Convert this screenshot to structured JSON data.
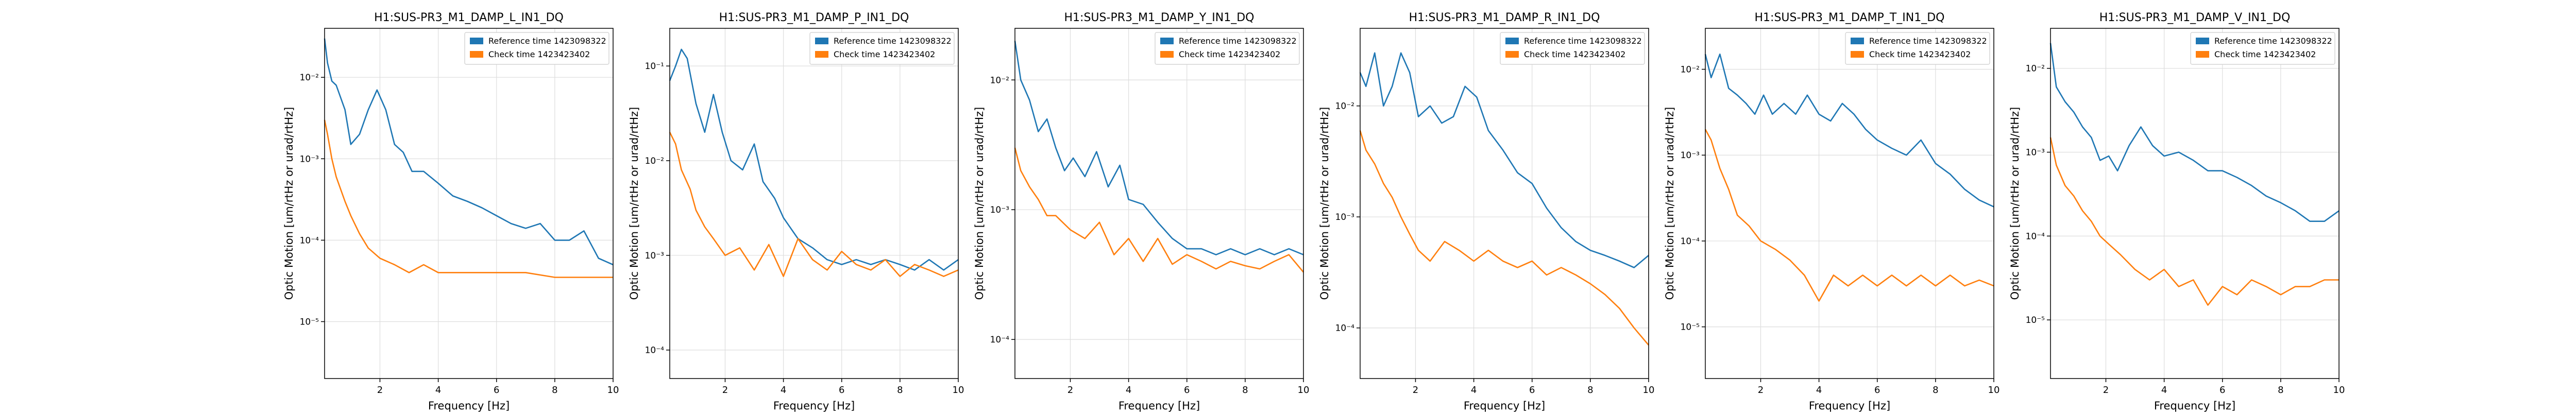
{
  "figure": {
    "xlabel": "Frequency [Hz]",
    "ylabel": "Optic Motion [um/rtHz or urad/rtHz]",
    "legend": [
      "Reference time 1423098322",
      "Check time 1423423402"
    ],
    "colors": {
      "reference": "#1f77b4",
      "check": "#ff7f0e",
      "grid": "#dddddd"
    }
  },
  "chart_data": [
    {
      "type": "line",
      "title": "H1:SUS-PR3_M1_DAMP_L_IN1_DQ",
      "xlabel": "Frequency [Hz]",
      "ylabel": "Optic Motion [um/rtHz or urad/rtHz]",
      "xlim": [
        0.1,
        10
      ],
      "ylim": [
        2e-06,
        0.04
      ],
      "log_y": true,
      "grid": true,
      "legend_position": "top-right",
      "xticks": [
        2,
        4,
        6,
        8,
        10
      ],
      "xtick_labels": [
        "2",
        "4",
        "6",
        "8",
        "10"
      ],
      "yticks": [
        1e-05,
        0.0001,
        0.001,
        0.01
      ],
      "ytick_labels": [
        "10⁻⁵",
        "10⁻⁴",
        "10⁻³",
        "10⁻²"
      ],
      "series": [
        {
          "name": "Reference time 1423098322",
          "x": [
            0.1,
            0.2,
            0.35,
            0.5,
            0.8,
            1.0,
            1.3,
            1.6,
            1.9,
            2.2,
            2.5,
            2.8,
            3.1,
            3.5,
            4.0,
            4.5,
            5.0,
            5.5,
            6.0,
            6.5,
            7.0,
            7.5,
            8.0,
            8.5,
            9.0,
            9.5,
            10.0
          ],
          "y": [
            0.03,
            0.015,
            0.009,
            0.008,
            0.004,
            0.0015,
            0.002,
            0.004,
            0.007,
            0.004,
            0.0015,
            0.0012,
            0.0007,
            0.0007,
            0.0005,
            0.00035,
            0.0003,
            0.00025,
            0.0002,
            0.00016,
            0.00014,
            0.00016,
            0.0001,
            0.0001,
            0.00013,
            6e-05,
            5e-05
          ]
        },
        {
          "name": "Check time 1423423402",
          "x": [
            0.1,
            0.2,
            0.35,
            0.5,
            0.8,
            1.0,
            1.3,
            1.6,
            2.0,
            2.5,
            3.0,
            3.5,
            4.0,
            5.0,
            6.0,
            7.0,
            8.0,
            9.0,
            10.0
          ],
          "y": [
            0.003,
            0.002,
            0.001,
            0.0006,
            0.0003,
            0.0002,
            0.00012,
            8e-05,
            6e-05,
            5e-05,
            4e-05,
            5e-05,
            4e-05,
            4e-05,
            4e-05,
            4e-05,
            3.5e-05,
            3.5e-05,
            3.5e-05
          ]
        }
      ]
    },
    {
      "type": "line",
      "title": "H1:SUS-PR3_M1_DAMP_P_IN1_DQ",
      "xlabel": "Frequency [Hz]",
      "ylabel": "Optic Motion [um/rtHz or urad/rtHz]",
      "xlim": [
        0.1,
        10
      ],
      "ylim": [
        5e-05,
        0.25
      ],
      "log_y": true,
      "grid": true,
      "legend_position": "top-right",
      "xticks": [
        2,
        4,
        6,
        8,
        10
      ],
      "xtick_labels": [
        "2",
        "4",
        "6",
        "8",
        "10"
      ],
      "yticks": [
        0.0001,
        0.001,
        0.01,
        0.1
      ],
      "ytick_labels": [
        "10⁻⁴",
        "10⁻³",
        "10⁻²",
        "10⁻¹"
      ],
      "series": [
        {
          "name": "Reference time 1423098322",
          "x": [
            0.1,
            0.3,
            0.5,
            0.7,
            1.0,
            1.3,
            1.6,
            1.9,
            2.2,
            2.6,
            3.0,
            3.3,
            3.7,
            4.0,
            4.5,
            5.0,
            5.5,
            6.0,
            6.5,
            7.0,
            7.5,
            8.0,
            8.5,
            9.0,
            9.5,
            10.0
          ],
          "y": [
            0.07,
            0.1,
            0.15,
            0.12,
            0.04,
            0.02,
            0.05,
            0.02,
            0.01,
            0.008,
            0.015,
            0.006,
            0.004,
            0.0025,
            0.0015,
            0.0012,
            0.0009,
            0.0008,
            0.0009,
            0.0008,
            0.0009,
            0.0008,
            0.0007,
            0.0009,
            0.0007,
            0.0009
          ]
        },
        {
          "name": "Check time 1423423402",
          "x": [
            0.1,
            0.3,
            0.5,
            0.8,
            1.0,
            1.3,
            1.6,
            2.0,
            2.5,
            3.0,
            3.5,
            4.0,
            4.5,
            5.0,
            5.5,
            6.0,
            6.5,
            7.0,
            7.5,
            8.0,
            8.5,
            9.0,
            9.5,
            10.0
          ],
          "y": [
            0.02,
            0.015,
            0.008,
            0.005,
            0.003,
            0.002,
            0.0015,
            0.001,
            0.0012,
            0.0007,
            0.0013,
            0.0006,
            0.0015,
            0.0009,
            0.0007,
            0.0011,
            0.0008,
            0.0007,
            0.0009,
            0.0006,
            0.0008,
            0.0007,
            0.0006,
            0.0007
          ]
        }
      ]
    },
    {
      "type": "line",
      "title": "H1:SUS-PR3_M1_DAMP_Y_IN1_DQ",
      "xlabel": "Frequency [Hz]",
      "ylabel": "Optic Motion [um/rtHz or urad/rtHz]",
      "xlim": [
        0.1,
        10
      ],
      "ylim": [
        5e-05,
        0.025
      ],
      "log_y": true,
      "grid": true,
      "legend_position": "top-right",
      "xticks": [
        2,
        4,
        6,
        8,
        10
      ],
      "xtick_labels": [
        "2",
        "4",
        "6",
        "8",
        "10"
      ],
      "yticks": [
        0.0001,
        0.001,
        0.01
      ],
      "ytick_labels": [
        "10⁻⁴",
        "10⁻³",
        "10⁻²"
      ],
      "series": [
        {
          "name": "Reference time 1423098322",
          "x": [
            0.1,
            0.3,
            0.6,
            0.9,
            1.2,
            1.5,
            1.8,
            2.1,
            2.5,
            2.9,
            3.3,
            3.7,
            4.0,
            4.5,
            5.0,
            5.5,
            6.0,
            6.5,
            7.0,
            7.5,
            8.0,
            8.5,
            9.0,
            9.5,
            10.0
          ],
          "y": [
            0.02,
            0.01,
            0.007,
            0.004,
            0.005,
            0.003,
            0.002,
            0.0025,
            0.0018,
            0.0028,
            0.0015,
            0.0022,
            0.0012,
            0.0011,
            0.0008,
            0.0006,
            0.0005,
            0.0005,
            0.00045,
            0.0005,
            0.00045,
            0.0005,
            0.00045,
            0.0005,
            0.00045
          ]
        },
        {
          "name": "Check time 1423423402",
          "x": [
            0.1,
            0.3,
            0.6,
            0.9,
            1.2,
            1.5,
            2.0,
            2.5,
            3.0,
            3.5,
            4.0,
            4.5,
            5.0,
            5.5,
            6.0,
            6.5,
            7.0,
            7.5,
            8.0,
            8.5,
            9.0,
            9.5,
            10.0
          ],
          "y": [
            0.003,
            0.002,
            0.0015,
            0.0012,
            0.0009,
            0.0009,
            0.0007,
            0.0006,
            0.0008,
            0.00045,
            0.0006,
            0.0004,
            0.0006,
            0.00038,
            0.00045,
            0.0004,
            0.00035,
            0.0004,
            0.00037,
            0.00035,
            0.0004,
            0.00045,
            0.00033
          ]
        }
      ]
    },
    {
      "type": "line",
      "title": "H1:SUS-PR3_M1_DAMP_R_IN1_DQ",
      "xlabel": "Frequency [Hz]",
      "ylabel": "Optic Motion [um/rtHz or urad/rtHz]",
      "xlim": [
        0.1,
        10
      ],
      "ylim": [
        3.5e-05,
        0.05
      ],
      "log_y": true,
      "grid": true,
      "legend_position": "top-right",
      "xticks": [
        2,
        4,
        6,
        8,
        10
      ],
      "xtick_labels": [
        "2",
        "4",
        "6",
        "8",
        "10"
      ],
      "yticks": [
        0.0001,
        0.001,
        0.01
      ],
      "ytick_labels": [
        "10⁻⁴",
        "10⁻³",
        "10⁻²"
      ],
      "series": [
        {
          "name": "Reference time 1423098322",
          "x": [
            0.1,
            0.3,
            0.6,
            0.9,
            1.2,
            1.5,
            1.8,
            2.1,
            2.5,
            2.9,
            3.3,
            3.7,
            4.1,
            4.5,
            5.0,
            5.5,
            6.0,
            6.5,
            7.0,
            7.5,
            8.0,
            8.5,
            9.0,
            9.5,
            10.0
          ],
          "y": [
            0.02,
            0.015,
            0.03,
            0.01,
            0.015,
            0.03,
            0.02,
            0.008,
            0.01,
            0.007,
            0.008,
            0.015,
            0.012,
            0.006,
            0.004,
            0.0025,
            0.002,
            0.0012,
            0.0008,
            0.0006,
            0.0005,
            0.00045,
            0.0004,
            0.00035,
            0.00045
          ]
        },
        {
          "name": "Check time 1423423402",
          "x": [
            0.1,
            0.3,
            0.6,
            0.9,
            1.2,
            1.5,
            1.8,
            2.1,
            2.5,
            3.0,
            3.5,
            4.0,
            4.5,
            5.0,
            5.5,
            6.0,
            6.5,
            7.0,
            7.5,
            8.0,
            8.5,
            9.0,
            9.5,
            10.0
          ],
          "y": [
            0.006,
            0.004,
            0.003,
            0.002,
            0.0015,
            0.001,
            0.0007,
            0.0005,
            0.0004,
            0.0006,
            0.0005,
            0.0004,
            0.0005,
            0.0004,
            0.00035,
            0.0004,
            0.0003,
            0.00035,
            0.0003,
            0.00025,
            0.0002,
            0.00015,
            0.0001,
            7e-05
          ]
        }
      ]
    },
    {
      "type": "line",
      "title": "H1:SUS-PR3_M1_DAMP_T_IN1_DQ",
      "xlabel": "Frequency [Hz]",
      "ylabel": "Optic Motion [um/rtHz or urad/rtHz]",
      "xlim": [
        0.1,
        10
      ],
      "ylim": [
        2.5e-06,
        0.03
      ],
      "log_y": true,
      "grid": true,
      "legend_position": "top-right",
      "xticks": [
        2,
        4,
        6,
        8,
        10
      ],
      "xtick_labels": [
        "2",
        "4",
        "6",
        "8",
        "10"
      ],
      "yticks": [
        1e-05,
        0.0001,
        0.001,
        0.01
      ],
      "ytick_labels": [
        "10⁻⁵",
        "10⁻⁴",
        "10⁻³",
        "10⁻²"
      ],
      "series": [
        {
          "name": "Reference time 1423098322",
          "x": [
            0.1,
            0.3,
            0.6,
            0.9,
            1.2,
            1.5,
            1.8,
            2.1,
            2.4,
            2.8,
            3.2,
            3.6,
            4.0,
            4.4,
            4.8,
            5.2,
            5.6,
            6.0,
            6.5,
            7.0,
            7.5,
            8.0,
            8.5,
            9.0,
            9.5,
            10.0
          ],
          "y": [
            0.015,
            0.008,
            0.015,
            0.006,
            0.005,
            0.004,
            0.003,
            0.005,
            0.003,
            0.004,
            0.003,
            0.005,
            0.003,
            0.0025,
            0.004,
            0.003,
            0.002,
            0.0015,
            0.0012,
            0.001,
            0.0015,
            0.0008,
            0.0006,
            0.0004,
            0.0003,
            0.00025
          ]
        },
        {
          "name": "Check time 1423423402",
          "x": [
            0.1,
            0.3,
            0.6,
            0.9,
            1.2,
            1.6,
            2.0,
            2.5,
            3.0,
            3.5,
            4.0,
            4.5,
            5.0,
            5.5,
            6.0,
            6.5,
            7.0,
            7.5,
            8.0,
            8.5,
            9.0,
            9.5,
            10.0
          ],
          "y": [
            0.002,
            0.0015,
            0.0007,
            0.0004,
            0.0002,
            0.00015,
            0.0001,
            8e-05,
            6e-05,
            4e-05,
            2e-05,
            4e-05,
            3e-05,
            4e-05,
            3e-05,
            4e-05,
            3e-05,
            4e-05,
            3e-05,
            4e-05,
            3e-05,
            3.5e-05,
            3e-05
          ]
        }
      ]
    },
    {
      "type": "line",
      "title": "H1:SUS-PR3_M1_DAMP_V_IN1_DQ",
      "xlabel": "Frequency [Hz]",
      "ylabel": "Optic Motion [um/rtHz or urad/rtHz]",
      "xlim": [
        0.1,
        10
      ],
      "ylim": [
        2e-06,
        0.03
      ],
      "log_y": true,
      "grid": true,
      "legend_position": "top-right",
      "xticks": [
        2,
        4,
        6,
        8,
        10
      ],
      "xtick_labels": [
        "2",
        "4",
        "6",
        "8",
        "10"
      ],
      "yticks": [
        1e-05,
        0.0001,
        0.001,
        0.01
      ],
      "ytick_labels": [
        "10⁻⁵",
        "10⁻⁴",
        "10⁻³",
        "10⁻²"
      ],
      "series": [
        {
          "name": "Reference time 1423098322",
          "x": [
            0.1,
            0.3,
            0.6,
            0.9,
            1.2,
            1.5,
            1.8,
            2.1,
            2.4,
            2.8,
            3.2,
            3.6,
            4.0,
            4.5,
            5.0,
            5.5,
            6.0,
            6.5,
            7.0,
            7.5,
            8.0,
            8.5,
            9.0,
            9.5,
            10.0
          ],
          "y": [
            0.02,
            0.006,
            0.004,
            0.003,
            0.002,
            0.0015,
            0.0008,
            0.0009,
            0.0006,
            0.0012,
            0.002,
            0.0012,
            0.0009,
            0.001,
            0.0008,
            0.0006,
            0.0006,
            0.0005,
            0.0004,
            0.0003,
            0.00025,
            0.0002,
            0.00015,
            0.00015,
            0.0002
          ]
        },
        {
          "name": "Check time 1423423402",
          "x": [
            0.1,
            0.3,
            0.6,
            0.9,
            1.2,
            1.5,
            1.8,
            2.1,
            2.5,
            3.0,
            3.5,
            4.0,
            4.5,
            5.0,
            5.5,
            6.0,
            6.5,
            7.0,
            7.5,
            8.0,
            8.5,
            9.0,
            9.5,
            10.0
          ],
          "y": [
            0.0015,
            0.0007,
            0.0004,
            0.0003,
            0.0002,
            0.00015,
            0.0001,
            8e-05,
            6e-05,
            4e-05,
            3e-05,
            4e-05,
            2.5e-05,
            3e-05,
            1.5e-05,
            2.5e-05,
            2e-05,
            3e-05,
            2.5e-05,
            2e-05,
            2.5e-05,
            2.5e-05,
            3e-05,
            3e-05
          ]
        }
      ]
    }
  ]
}
